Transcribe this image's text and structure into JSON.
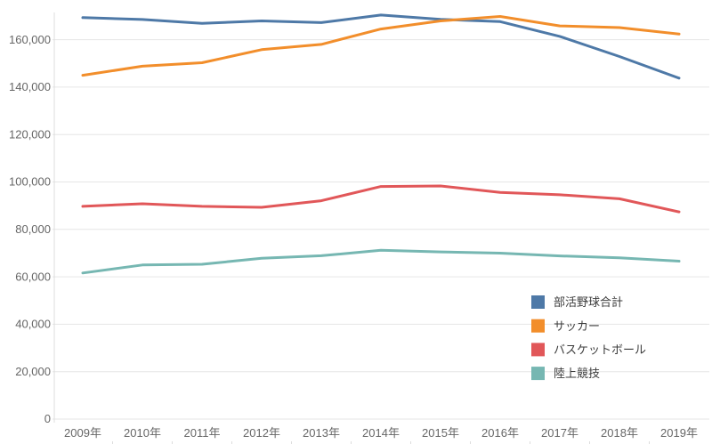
{
  "chart_data": {
    "type": "line",
    "title": "",
    "xlabel": "",
    "ylabel": "",
    "categories": [
      "2009年",
      "2010年",
      "2011年",
      "2012年",
      "2013年",
      "2014年",
      "2015年",
      "2016年",
      "2017年",
      "2018年",
      "2019年"
    ],
    "series": [
      {
        "key": "baseball-total",
        "name": "部活野球合計",
        "color": "#4E79A7",
        "values": [
          169300,
          168500,
          166900,
          167900,
          167200,
          170400,
          168600,
          167600,
          161400,
          152900,
          143800
        ]
      },
      {
        "key": "soccer",
        "name": "サッカー",
        "color": "#F28E2B",
        "values": [
          145000,
          148800,
          150300,
          155800,
          158000,
          164500,
          167900,
          169800,
          165800,
          165100,
          162400
        ]
      },
      {
        "key": "basketball",
        "name": "バスケットボール",
        "color": "#E15759",
        "values": [
          89700,
          90800,
          89700,
          89300,
          92100,
          98100,
          98300,
          95600,
          94600,
          92900,
          87400
        ]
      },
      {
        "key": "track-field",
        "name": "陸上競技",
        "color": "#76B7B2",
        "values": [
          61600,
          65000,
          65300,
          67800,
          68900,
          71200,
          70500,
          70000,
          68800,
          68000,
          66600
        ]
      }
    ],
    "y_ticks": [
      0,
      20000,
      40000,
      60000,
      80000,
      100000,
      120000,
      140000,
      160000
    ],
    "ylim": [
      0,
      172000
    ],
    "grid": "horizontal",
    "legend_position": "inside-right-middle",
    "colors": {
      "background": "#ffffff",
      "gridline": "#e6e6e6",
      "axis_line": "#dddddd",
      "axis_text": "#666666",
      "legend_text": "#3c3c3c"
    }
  }
}
